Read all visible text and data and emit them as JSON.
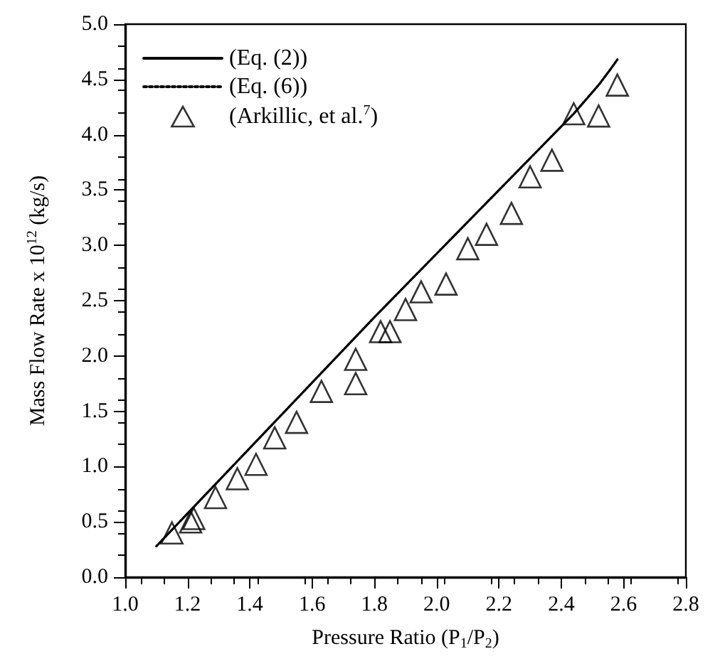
{
  "chart_data": {
    "type": "line",
    "xlabel": "Pressure Ratio (P$_{1}$/P$_{2}$)",
    "ylabel": "Mass Flow Rate x 10$^{12}$ (kg/s)",
    "xlim": [
      1.0,
      2.8
    ],
    "xticks": [
      {
        "value": 1,
        "label": "1.0"
      },
      1.2,
      1.4,
      1.6,
      1.8,
      {
        "value": 2,
        "label": "2.0"
      },
      2.2,
      2.4,
      2.6,
      2.8
    ],
    "ylim": [
      0.0,
      5.0
    ],
    "yticks": [
      {
        "value": 0,
        "label": "0.0"
      },
      0.5,
      {
        "value": 1,
        "label": "1.0"
      },
      1.5,
      {
        "value": 2,
        "label": "2.0"
      },
      2.5,
      {
        "value": 3,
        "label": "3.0"
      },
      3.5,
      {
        "value": 4,
        "label": "4.0"
      },
      4.5,
      {
        "value": 5,
        "label": "5.0"
      }
    ],
    "grid": false,
    "legend": "top left",
    "series": [
      {
        "name": "(Eq. (2))",
        "type": "line",
        "line_style": "solid",
        "marker": "none",
        "color": "#000000",
        "x": [
          1.1,
          1.8,
          2.44,
          2.52,
          2.56,
          2.58
        ],
        "values": [
          0.28,
          2.35,
          4.19,
          4.45,
          4.6,
          4.68
        ]
      },
      {
        "name": "(Eq. (6))",
        "type": "line",
        "line_style": "dotted",
        "marker": "none",
        "color": "#000000",
        "x": [
          1.1,
          1.8,
          2.44,
          2.52,
          2.56,
          2.58
        ],
        "values": [
          0.28,
          2.35,
          4.19,
          4.45,
          4.6,
          4.68
        ]
      },
      {
        "name": "(Arkillic, et al.$^{7}$)",
        "type": "scatter",
        "marker": "triangle",
        "color": "#000000",
        "x": [
          1.15,
          1.21,
          1.22,
          1.29,
          1.36,
          1.42,
          1.48,
          1.55,
          1.63,
          1.74,
          1.74,
          1.82,
          1.85,
          1.9,
          1.95,
          2.03,
          2.1,
          2.16,
          2.24,
          2.3,
          2.37,
          2.44,
          2.52,
          2.58
        ],
        "values": [
          0.4,
          0.5,
          0.53,
          0.72,
          0.89,
          1.02,
          1.26,
          1.4,
          1.68,
          1.75,
          1.97,
          2.22,
          2.22,
          2.42,
          2.58,
          2.65,
          2.97,
          3.1,
          3.29,
          3.62,
          3.77,
          4.19,
          4.17,
          4.45
        ]
      }
    ]
  }
}
